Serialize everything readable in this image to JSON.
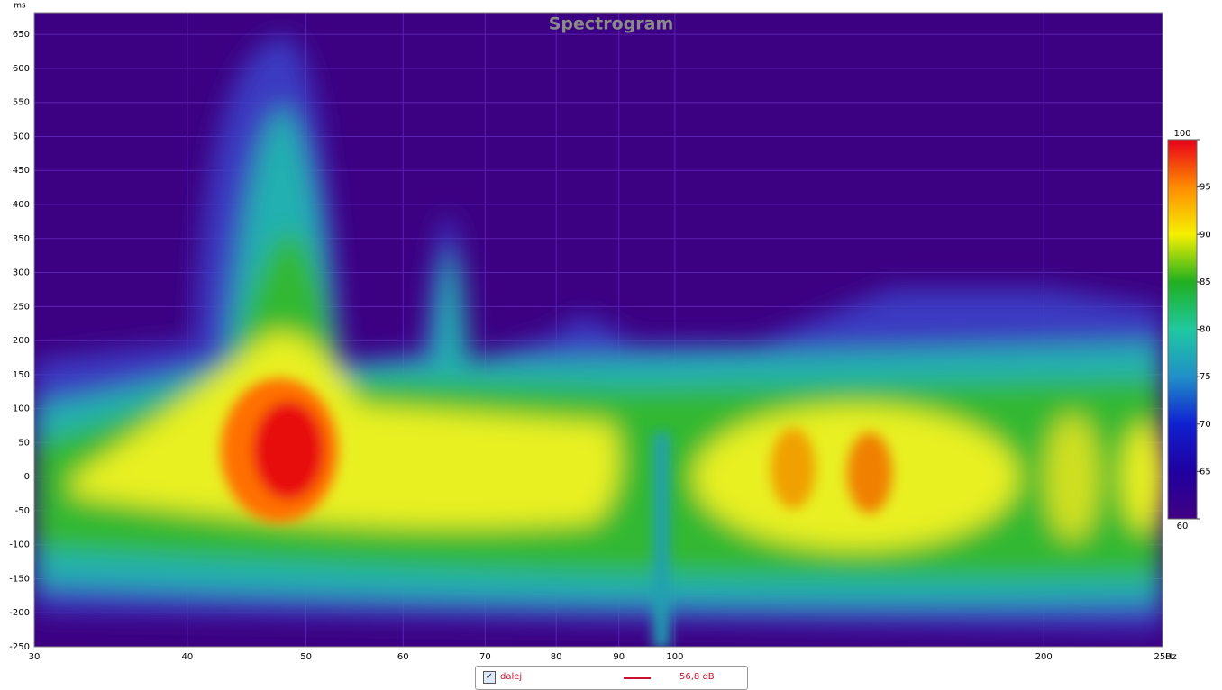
{
  "chart_data": {
    "type": "spectrogram",
    "title": "Spectrogram",
    "xlabel": "Hz",
    "ylabel": "ms",
    "xscale": "log",
    "xlim": [
      30,
      250
    ],
    "xticks": [
      30,
      40,
      50,
      60,
      70,
      80,
      90,
      100,
      200,
      250
    ],
    "ylim": [
      -250,
      682
    ],
    "yticks": [
      650,
      600,
      550,
      500,
      450,
      400,
      350,
      300,
      250,
      200,
      150,
      100,
      50,
      0,
      -50,
      -100,
      -150,
      -200,
      -250
    ],
    "grid": true,
    "colorbar": {
      "lim": [
        60,
        100
      ],
      "ticks": [
        100,
        95,
        90,
        85,
        80,
        75,
        70,
        65,
        60
      ]
    },
    "legend": {
      "name": "dalej",
      "color": "#cc1030",
      "label": "56,8 dB"
    }
  }
}
